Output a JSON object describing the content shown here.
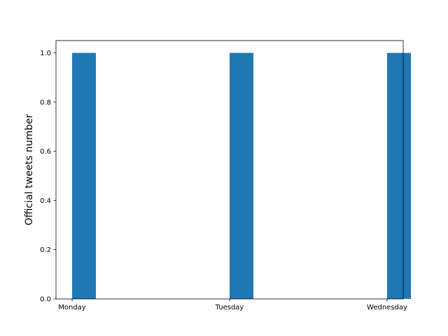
{
  "chart_data": {
    "type": "bar",
    "categories": [
      "Monday",
      "Tuesday",
      "Wednesday"
    ],
    "values": [
      1,
      1,
      1
    ],
    "title": "",
    "xlabel": "",
    "ylabel": "Official tweets number",
    "ylim": [
      0,
      1.05
    ],
    "yticks": [
      "0.0",
      "0.2",
      "0.4",
      "0.6",
      "0.8",
      "1.0"
    ],
    "grid": false,
    "bar_color": "#1f77b4"
  }
}
